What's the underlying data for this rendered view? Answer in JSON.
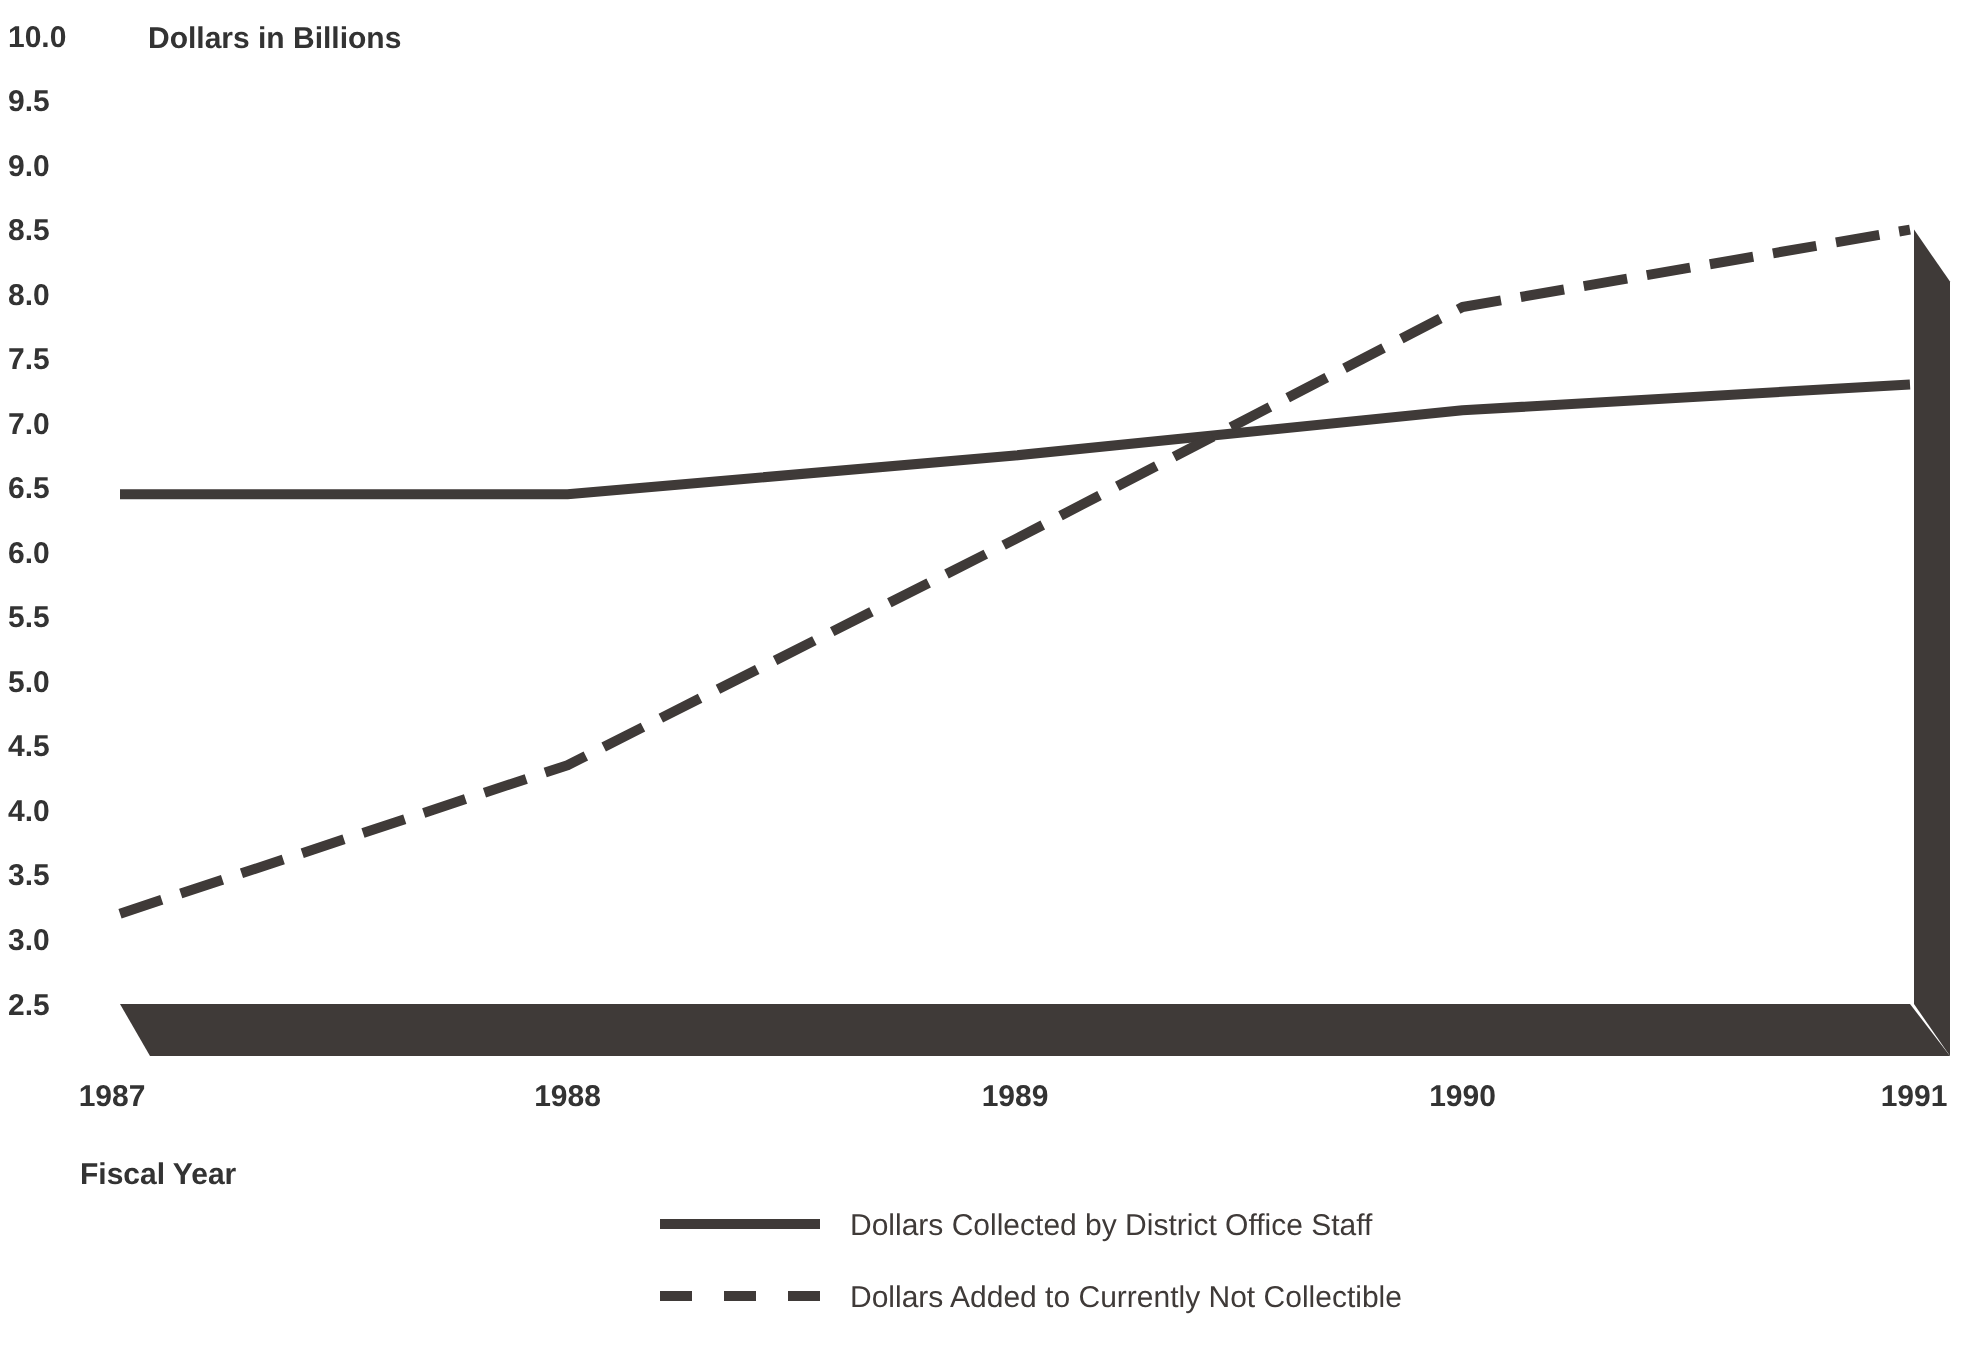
{
  "chart_data": {
    "type": "line",
    "ylabel": "Dollars in Billions",
    "xlabel": "Fiscal Year",
    "x": [
      1987,
      1988,
      1989,
      1990,
      1991
    ],
    "xlim": [
      1987,
      1991
    ],
    "xticks": [
      1987,
      1988,
      1989,
      1990,
      1991
    ],
    "ylim": [
      2.5,
      10
    ],
    "yticks": [
      {
        "value": 2.5,
        "label": "2.5"
      },
      {
        "value": 3,
        "label": "3.0"
      },
      {
        "value": 3.5,
        "label": "3.5"
      },
      {
        "value": 4,
        "label": "4.0"
      },
      {
        "value": 4.5,
        "label": "4.5"
      },
      {
        "value": 5,
        "label": "5.0"
      },
      {
        "value": 5.5,
        "label": "5.5"
      },
      {
        "value": 6,
        "label": "6.0"
      },
      {
        "value": 6.5,
        "label": "6.5"
      },
      {
        "value": 7,
        "label": "7.0"
      },
      {
        "value": 7.5,
        "label": "7.5"
      },
      {
        "value": 8,
        "label": "8.0"
      },
      {
        "value": 8.5,
        "label": "8.5"
      },
      {
        "value": 9,
        "label": "9.0"
      },
      {
        "value": 9.5,
        "label": "9.5"
      },
      {
        "value": 10,
        "label": "10.0"
      }
    ],
    "series": [
      {
        "name": "Dollars Collected by District Office Staff",
        "color": "#3f3a38",
        "line_style": "solid",
        "values": [
          6.45,
          6.45,
          6.75,
          7.1,
          7.3
        ]
      },
      {
        "name": "Dollars Added to Currently Not Collectible",
        "color": "#3f3a38",
        "line_style": "dashed",
        "values": [
          3.2,
          4.35,
          6.1,
          7.9,
          8.5
        ]
      }
    ],
    "legend": "bottom",
    "grid": false,
    "marker": "none"
  }
}
